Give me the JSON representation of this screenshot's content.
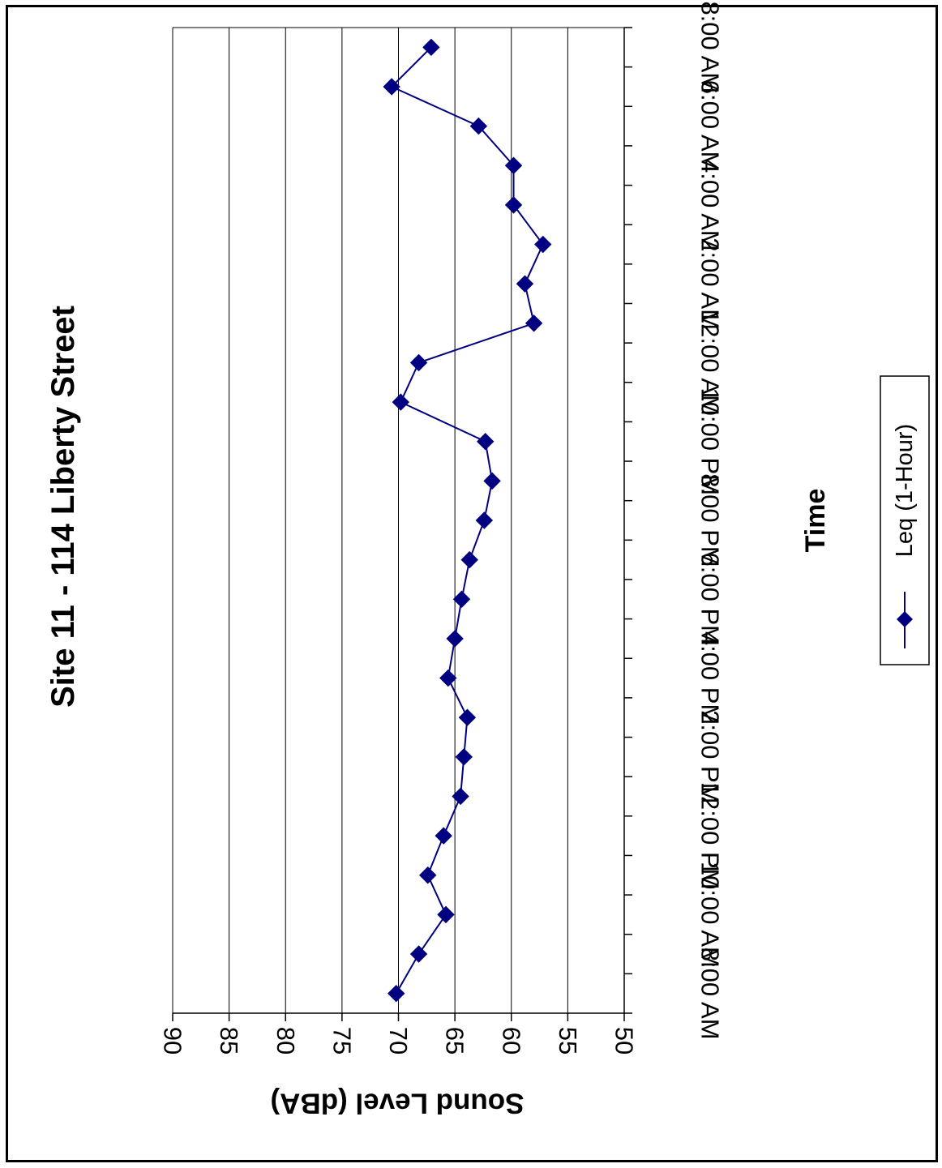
{
  "chart_data": {
    "type": "line",
    "title": "Site 11 - 114 Liberty Street",
    "xlabel": "Time",
    "ylabel": "Sound Level (dBA)",
    "ylim": [
      50,
      90
    ],
    "yticks": [
      "90",
      "85",
      "80",
      "75",
      "70",
      "65",
      "60",
      "55",
      "50"
    ],
    "xtick_labels": [
      "8:00 AM",
      "10:00 AM",
      "12:00 PM",
      "2:00 PM",
      "4:00 PM",
      "6:00 PM",
      "8:00 PM",
      "10:00 PM",
      "12:00 AM",
      "2:00 AM",
      "4:00 AM",
      "6:00 AM",
      "8:00 AM"
    ],
    "grid": true,
    "orientation": "rotated 90 degrees clockwise",
    "legend_position": "bottom-right",
    "series": [
      {
        "name": "Leq (1-Hour)",
        "color": "#000080",
        "marker": "diamond",
        "values": [
          70.2,
          68.2,
          65.8,
          67.4,
          66.0,
          64.5,
          64.2,
          63.9,
          65.6,
          65.0,
          64.4,
          63.7,
          62.4,
          61.7,
          62.3,
          69.8,
          68.2,
          58.0,
          58.8,
          57.2,
          59.8,
          59.8,
          62.9,
          70.6,
          67.1
        ]
      }
    ]
  }
}
